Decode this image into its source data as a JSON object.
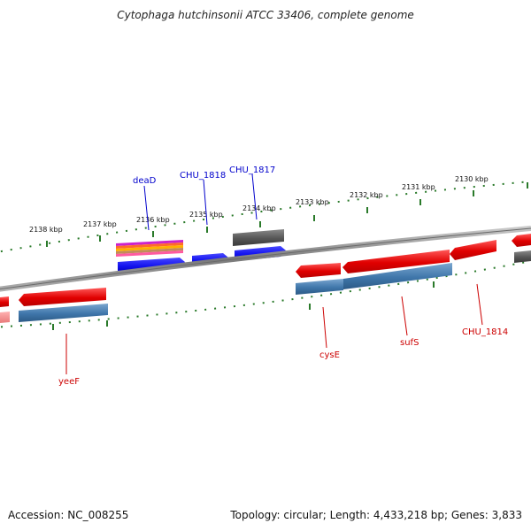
{
  "title": "Cytophaga hutchinsonii ATCC 33406, complete genome",
  "footer": {
    "accession": "Accession: NC_008255",
    "stats": "Topology: circular; Length: 4,433,218 bp; Genes: 3,833"
  },
  "colors": {
    "gene_blue": "#1f1fee",
    "gene_red": "#ee1111",
    "gene_gray": "#666666",
    "cds_steelblue": "#4a7fb0",
    "backbone": "#888888",
    "tick_green": "#2a7a2a",
    "label_blue": "#0000cc",
    "label_red": "#cc0000"
  },
  "ticks": [
    {
      "label": "2138 kbp"
    },
    {
      "label": "2137 kbp"
    },
    {
      "label": "2136 kbp"
    },
    {
      "label": "2135 kbp"
    },
    {
      "label": "2134 kbp"
    },
    {
      "label": "2133 kbp"
    },
    {
      "label": "2132 kbp"
    },
    {
      "label": "2131 kbp"
    },
    {
      "label": "2130 kbp"
    }
  ],
  "gene_labels": {
    "deaD": "deaD",
    "chu1818": "CHU_1818",
    "chu1817": "CHU_1817",
    "cysE": "cysE",
    "sufS": "sufS",
    "chu1814": "CHU_1814",
    "yeeF": "yeeF"
  }
}
